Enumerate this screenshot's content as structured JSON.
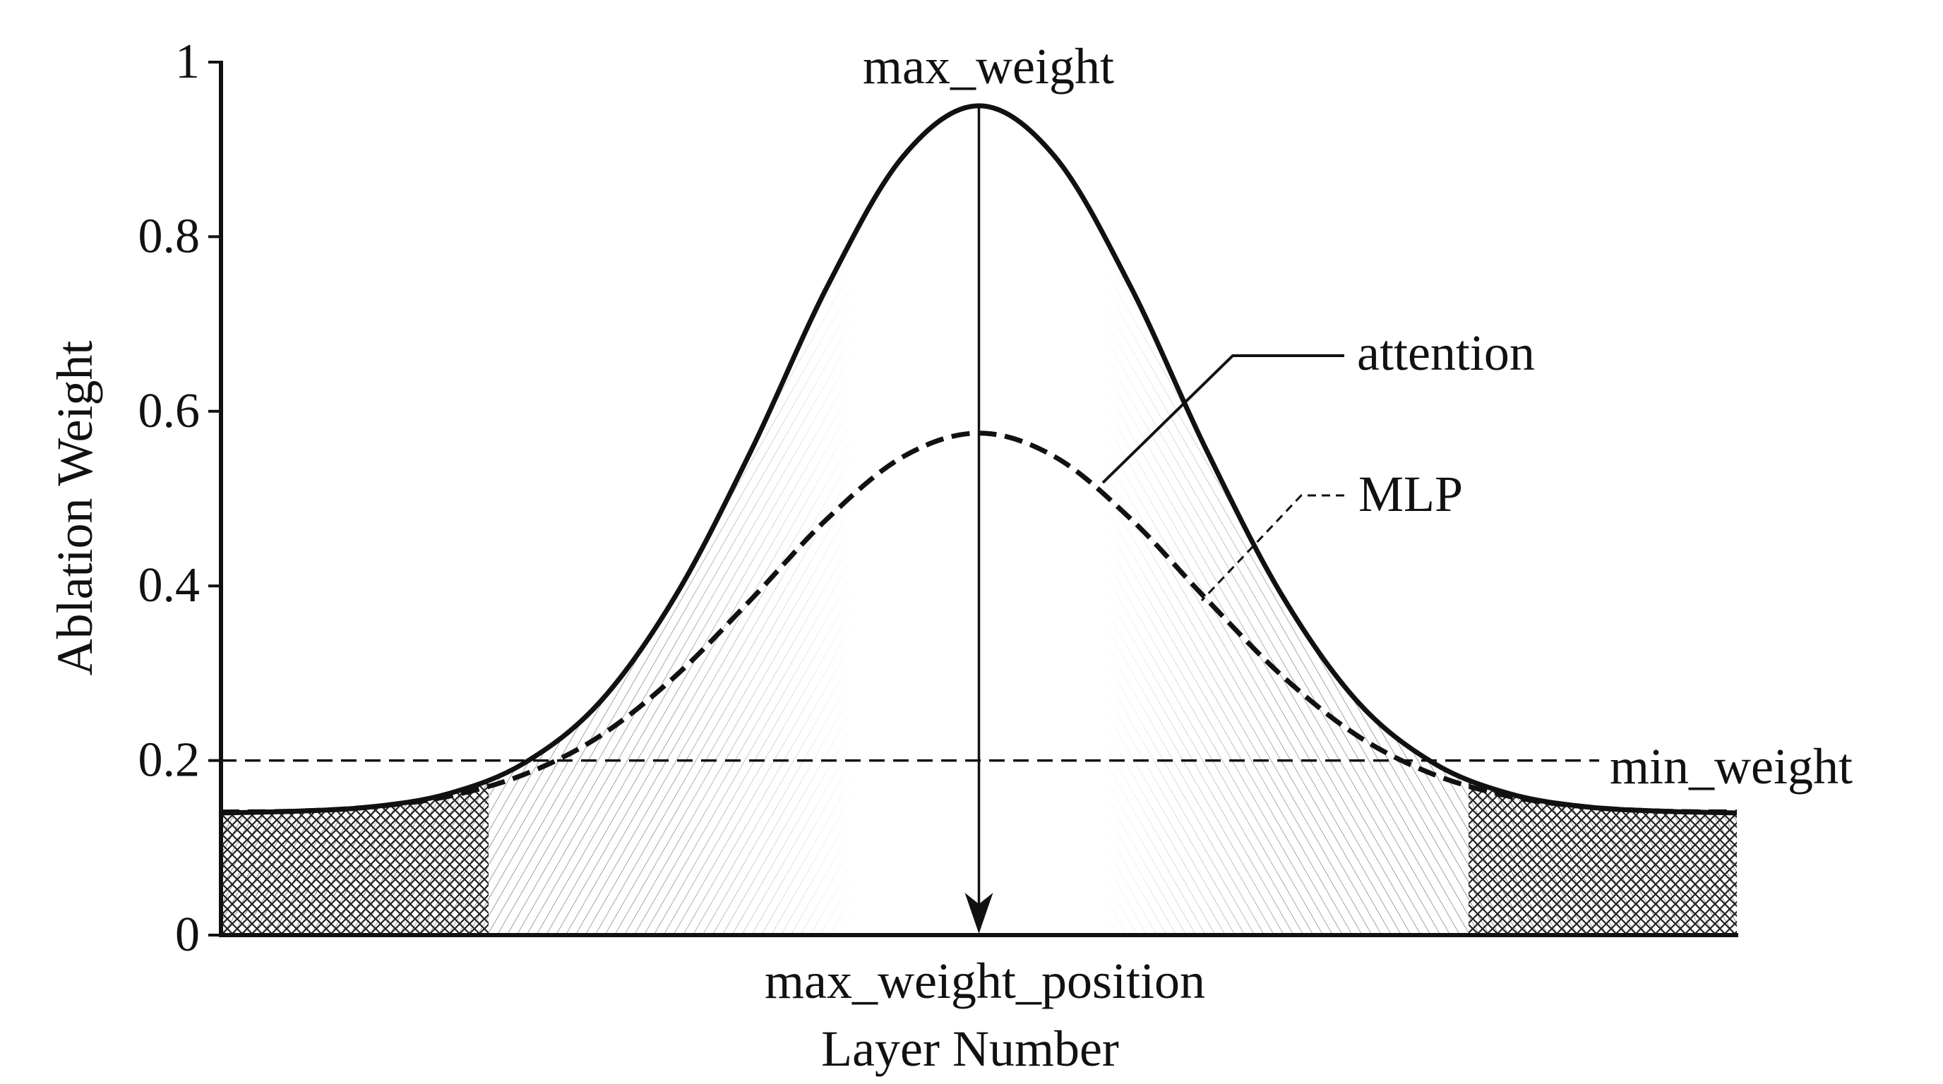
{
  "chart_data": {
    "type": "line",
    "title": "",
    "xlabel": "Layer Number",
    "ylabel": "Ablation Weight",
    "ylim": [
      0,
      1
    ],
    "xlim": [
      0,
      1
    ],
    "yticks": [
      "0",
      "0.2",
      "0.4",
      "0.6",
      "0.8",
      "1"
    ],
    "ytick_values": [
      0,
      0.2,
      0.4,
      0.6,
      0.8,
      1
    ],
    "grid": false,
    "x": [
      0,
      0.05,
      0.1,
      0.15,
      0.2,
      0.25,
      0.3,
      0.35,
      0.4,
      0.45,
      0.5,
      0.55,
      0.6,
      0.65,
      0.7,
      0.75,
      0.8,
      0.85,
      0.9,
      0.95,
      1
    ],
    "series": [
      {
        "name": "attention",
        "style": "solid",
        "color": "#111111",
        "values": [
          0.14,
          0.142,
          0.147,
          0.162,
          0.197,
          0.267,
          0.389,
          0.556,
          0.743,
          0.892,
          0.95,
          0.892,
          0.743,
          0.556,
          0.389,
          0.267,
          0.197,
          0.162,
          0.147,
          0.142,
          0.14
        ]
      },
      {
        "name": "MLP",
        "style": "dashed",
        "color": "#111111",
        "values": [
          0.141,
          0.142,
          0.147,
          0.159,
          0.184,
          0.228,
          0.297,
          0.385,
          0.477,
          0.548,
          0.575,
          0.548,
          0.477,
          0.385,
          0.297,
          0.228,
          0.184,
          0.159,
          0.147,
          0.142,
          0.141
        ]
      }
    ],
    "annotations": {
      "max_weight": {
        "label": "max_weight",
        "y": 0.95
      },
      "min_weight": {
        "label": "min_weight",
        "y": 0.2,
        "style": "dashed"
      },
      "max_weight_position": {
        "label": "max_weight_position",
        "x": 0.5
      }
    },
    "legend_placement": "right (leader-line labels)"
  }
}
